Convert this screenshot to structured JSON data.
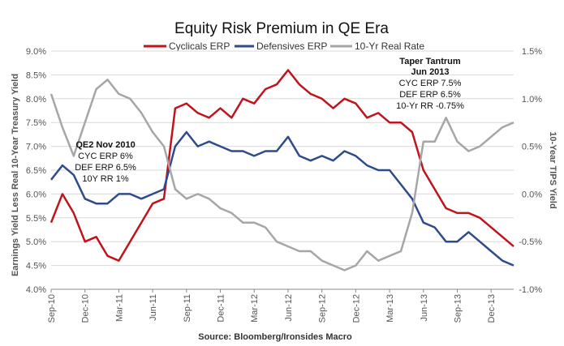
{
  "chart_data": {
    "type": "line",
    "title": "Equity Risk Premium in QE Era",
    "source": "Source: Bloomberg/Ironsides Macro",
    "y_left_label": "Earnings Yield Less Real 10-Year Treasury Yield",
    "y_right_label": "10-Year TIPS Yield",
    "y_left_ticks": [
      "4.0%",
      "4.5%",
      "5.0%",
      "5.5%",
      "6.0%",
      "6.5%",
      "7.0%",
      "7.5%",
      "8.0%",
      "8.5%",
      "9.0%"
    ],
    "y_right_ticks": [
      "-1.0%",
      "-0.5%",
      "0.0%",
      "0.5%",
      "1.0%",
      "1.5%"
    ],
    "ylim_left": [
      4.0,
      9.0
    ],
    "ylim_right": [
      -1.0,
      1.5
    ],
    "x_ticks": [
      "Sep-10",
      "Dec-10",
      "Mar-11",
      "Jun-11",
      "Sep-11",
      "Dec-11",
      "Mar-12",
      "Jun-12",
      "Sep-12",
      "Dec-12",
      "Mar-13",
      "Jun-13",
      "Sep-13",
      "Dec-13"
    ],
    "x_range": [
      "Sep-10",
      "Feb-14"
    ],
    "legend_position": "top",
    "grid": "horizontal",
    "series": [
      {
        "name": "Cyclicals ERP",
        "color": "#c0141c",
        "axis": "left",
        "x": [
          "Sep-10",
          "Oct-10",
          "Nov-10",
          "Dec-10",
          "Jan-11",
          "Feb-11",
          "Mar-11",
          "Apr-11",
          "May-11",
          "Jun-11",
          "Jul-11",
          "Aug-11",
          "Sep-11",
          "Oct-11",
          "Nov-11",
          "Dec-11",
          "Jan-12",
          "Feb-12",
          "Mar-12",
          "Apr-12",
          "May-12",
          "Jun-12",
          "Jul-12",
          "Aug-12",
          "Sep-12",
          "Oct-12",
          "Nov-12",
          "Dec-12",
          "Jan-13",
          "Feb-13",
          "Mar-13",
          "Apr-13",
          "May-13",
          "Jun-13",
          "Jul-13",
          "Aug-13",
          "Sep-13",
          "Oct-13",
          "Nov-13",
          "Dec-13",
          "Jan-14",
          "Feb-14"
        ],
        "values": [
          5.4,
          6.0,
          5.6,
          5.0,
          5.1,
          4.7,
          4.6,
          5.0,
          5.4,
          5.8,
          5.9,
          7.8,
          7.9,
          7.7,
          7.6,
          7.8,
          7.6,
          8.0,
          7.9,
          8.2,
          8.3,
          8.6,
          8.3,
          8.1,
          8.0,
          7.8,
          8.0,
          7.9,
          7.6,
          7.7,
          7.5,
          7.5,
          7.3,
          6.5,
          6.1,
          5.7,
          5.6,
          5.6,
          5.5,
          5.3,
          5.1,
          4.9
        ]
      },
      {
        "name": "Defensives ERP",
        "color": "#2e4b8b",
        "axis": "left",
        "x": [
          "Sep-10",
          "Oct-10",
          "Nov-10",
          "Dec-10",
          "Jan-11",
          "Feb-11",
          "Mar-11",
          "Apr-11",
          "May-11",
          "Jun-11",
          "Jul-11",
          "Aug-11",
          "Sep-11",
          "Oct-11",
          "Nov-11",
          "Dec-11",
          "Jan-12",
          "Feb-12",
          "Mar-12",
          "Apr-12",
          "May-12",
          "Jun-12",
          "Jul-12",
          "Aug-12",
          "Sep-12",
          "Oct-12",
          "Nov-12",
          "Dec-12",
          "Jan-13",
          "Feb-13",
          "Mar-13",
          "Apr-13",
          "May-13",
          "Jun-13",
          "Jul-13",
          "Aug-13",
          "Sep-13",
          "Oct-13",
          "Nov-13",
          "Dec-13",
          "Jan-14",
          "Feb-14"
        ],
        "values": [
          6.3,
          6.6,
          6.4,
          5.9,
          5.8,
          5.8,
          6.0,
          6.0,
          5.9,
          6.0,
          6.1,
          7.0,
          7.3,
          7.0,
          7.1,
          7.0,
          6.9,
          6.9,
          6.8,
          6.9,
          6.9,
          7.2,
          6.8,
          6.7,
          6.8,
          6.7,
          6.9,
          6.8,
          6.6,
          6.5,
          6.5,
          6.2,
          5.9,
          5.4,
          5.3,
          5.0,
          5.0,
          5.2,
          5.0,
          4.8,
          4.6,
          4.5
        ]
      },
      {
        "name": "10-Yr Real Rate",
        "color": "#a6a6a6",
        "axis": "right",
        "x": [
          "Sep-10",
          "Oct-10",
          "Nov-10",
          "Dec-10",
          "Jan-11",
          "Feb-11",
          "Mar-11",
          "Apr-11",
          "May-11",
          "Jun-11",
          "Jul-11",
          "Aug-11",
          "Sep-11",
          "Oct-11",
          "Nov-11",
          "Dec-11",
          "Jan-12",
          "Feb-12",
          "Mar-12",
          "Apr-12",
          "May-12",
          "Jun-12",
          "Jul-12",
          "Aug-12",
          "Sep-12",
          "Oct-12",
          "Nov-12",
          "Dec-12",
          "Jan-13",
          "Feb-13",
          "Mar-13",
          "Apr-13",
          "May-13",
          "Jun-13",
          "Jul-13",
          "Aug-13",
          "Sep-13",
          "Oct-13",
          "Nov-13",
          "Dec-13",
          "Jan-14",
          "Feb-14"
        ],
        "values": [
          1.05,
          0.7,
          0.4,
          0.75,
          1.1,
          1.2,
          1.05,
          1.0,
          0.85,
          0.65,
          0.5,
          0.05,
          -0.05,
          0.0,
          -0.05,
          -0.15,
          -0.2,
          -0.3,
          -0.3,
          -0.35,
          -0.5,
          -0.55,
          -0.6,
          -0.6,
          -0.7,
          -0.75,
          -0.8,
          -0.75,
          -0.6,
          -0.7,
          -0.65,
          -0.6,
          -0.2,
          0.55,
          0.55,
          0.8,
          0.55,
          0.45,
          0.5,
          0.6,
          0.7,
          0.75
        ]
      }
    ],
    "annotations": [
      {
        "lines": [
          "QE2 Nov 2010",
          "CYC ERP 6%",
          "DEF ERP 6.5%",
          "10Y RR 1%"
        ]
      },
      {
        "lines": [
          "Taper Tantrum",
          "Jun 2013",
          "CYC ERP 7.5%",
          "DEF ERP 6.5%",
          "10-Yr RR -0.75%"
        ]
      }
    ]
  }
}
